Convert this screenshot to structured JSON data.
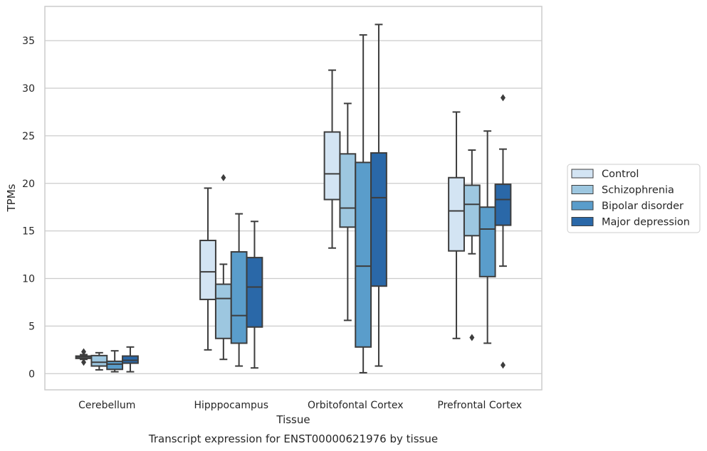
{
  "chart_data": {
    "type": "box",
    "title": "",
    "caption": "Transcript expression for ENST00000621976 by tissue",
    "xlabel": "Tissue",
    "ylabel": "TPMs",
    "ylim": [
      -1.7,
      38.6
    ],
    "yticks": [
      0,
      5,
      10,
      15,
      20,
      25,
      30,
      35
    ],
    "grid": true,
    "legend_position": "right",
    "categories": [
      "Cerebellum",
      "Hipppocampus",
      "Orbitofontal Cortex",
      "Prefrontal Cortex"
    ],
    "series": [
      {
        "name": "Control",
        "color": "#d3e4f3",
        "boxes": [
          {
            "whisker_low": 1.5,
            "q1": 1.6,
            "median": 1.75,
            "q3": 1.85,
            "whisker_high": 2.0,
            "outliers": [
              2.3,
              1.2
            ]
          },
          {
            "whisker_low": 2.5,
            "q1": 7.8,
            "median": 10.7,
            "q3": 14.0,
            "whisker_high": 19.5,
            "outliers": []
          },
          {
            "whisker_low": 13.2,
            "q1": 18.3,
            "median": 21.0,
            "q3": 25.4,
            "whisker_high": 31.9,
            "outliers": []
          },
          {
            "whisker_low": 3.7,
            "q1": 12.9,
            "median": 17.1,
            "q3": 20.6,
            "whisker_high": 27.5,
            "outliers": []
          }
        ]
      },
      {
        "name": "Schizophrenia",
        "color": "#9dc7e0",
        "boxes": [
          {
            "whisker_low": 0.4,
            "q1": 0.8,
            "median": 1.2,
            "q3": 1.9,
            "whisker_high": 2.2,
            "outliers": []
          },
          {
            "whisker_low": 1.5,
            "q1": 3.7,
            "median": 7.9,
            "q3": 9.4,
            "whisker_high": 11.5,
            "outliers": [
              20.6
            ]
          },
          {
            "whisker_low": 5.6,
            "q1": 15.4,
            "median": 17.4,
            "q3": 23.1,
            "whisker_high": 28.4,
            "outliers": []
          },
          {
            "whisker_low": 12.6,
            "q1": 14.5,
            "median": 17.8,
            "q3": 19.8,
            "whisker_high": 23.5,
            "outliers": [
              3.8
            ]
          }
        ]
      },
      {
        "name": "Bipolar disorder",
        "color": "#5a9dcb",
        "boxes": [
          {
            "whisker_low": 0.2,
            "q1": 0.45,
            "median": 1.0,
            "q3": 1.3,
            "whisker_high": 2.4,
            "outliers": []
          },
          {
            "whisker_low": 0.8,
            "q1": 3.2,
            "median": 6.1,
            "q3": 12.8,
            "whisker_high": 16.8,
            "outliers": []
          },
          {
            "whisker_low": 0.1,
            "q1": 2.8,
            "median": 11.3,
            "q3": 22.2,
            "whisker_high": 35.6,
            "outliers": []
          },
          {
            "whisker_low": 3.2,
            "q1": 10.2,
            "median": 15.2,
            "q3": 17.5,
            "whisker_high": 25.5,
            "outliers": []
          }
        ]
      },
      {
        "name": "Major depression",
        "color": "#2a68a8",
        "boxes": [
          {
            "whisker_low": 0.2,
            "q1": 1.1,
            "median": 1.4,
            "q3": 1.85,
            "whisker_high": 2.8,
            "outliers": []
          },
          {
            "whisker_low": 0.6,
            "q1": 4.9,
            "median": 9.1,
            "q3": 12.2,
            "whisker_high": 16.0,
            "outliers": []
          },
          {
            "whisker_low": 0.8,
            "q1": 9.2,
            "median": 18.5,
            "q3": 23.2,
            "whisker_high": 36.7,
            "outliers": []
          },
          {
            "whisker_low": 11.3,
            "q1": 15.6,
            "median": 18.3,
            "q3": 19.9,
            "whisker_high": 23.6,
            "outliers": [
              29.0,
              0.9
            ]
          }
        ]
      }
    ]
  }
}
